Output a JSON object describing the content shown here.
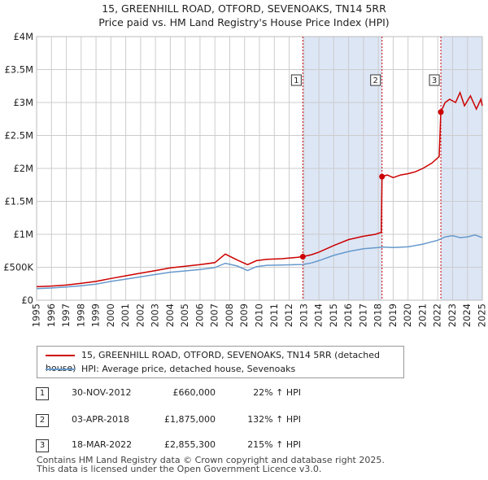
{
  "title_line1": "15, GREENHILL ROAD, OTFORD, SEVENOAKS, TN14 5RR",
  "title_line2": "Price paid vs. HM Land Registry's House Price Index (HPI)",
  "colors": {
    "property": "#cc0000",
    "hpi": "#6699cc",
    "band": "#dde6f5",
    "grid": "#cccccc"
  },
  "legend": {
    "property_label": "15, GREENHILL ROAD, OTFORD, SEVENOAKS, TN14 5RR (detached house)",
    "hpi_label": "HPI: Average price, detached house, Sevenoaks"
  },
  "transactions": [
    {
      "num": "1",
      "date": "30-NOV-2012",
      "price": "£660,000",
      "hpi_change": "22% ↑ HPI"
    },
    {
      "num": "2",
      "date": "03-APR-2018",
      "price": "£1,875,000",
      "hpi_change": "132% ↑ HPI"
    },
    {
      "num": "3",
      "date": "18-MAR-2022",
      "price": "£2,855,300",
      "hpi_change": "215% ↑ HPI"
    }
  ],
  "footer_line1": "Contains HM Land Registry data © Crown copyright and database right 2025.",
  "footer_line2": "This data is licensed under the Open Government Licence v3.0.",
  "chart_data": {
    "type": "line",
    "title": "15, GREENHILL ROAD, OTFORD, SEVENOAKS, TN14 5RR — Price paid vs. HM Land Registry's House Price Index (HPI)",
    "xlabel": "",
    "ylabel": "",
    "xlim": [
      1995,
      2025
    ],
    "ylim": [
      0,
      4000000
    ],
    "y_ticks": [
      0,
      500000,
      1000000,
      1500000,
      2000000,
      2500000,
      3000000,
      3500000,
      4000000
    ],
    "y_tick_labels": [
      "£0",
      "£500K",
      "£1M",
      "£1.5M",
      "£2M",
      "£2.5M",
      "£3M",
      "£3.5M",
      "£4M"
    ],
    "x_ticks": [
      1995,
      1996,
      1997,
      1998,
      1999,
      2000,
      2001,
      2002,
      2003,
      2004,
      2005,
      2006,
      2007,
      2008,
      2009,
      2010,
      2011,
      2012,
      2013,
      2014,
      2015,
      2016,
      2017,
      2018,
      2019,
      2020,
      2021,
      2022,
      2023,
      2024,
      2025
    ],
    "x_tick_labels": [
      "1995",
      "1996",
      "1997",
      "1998",
      "1999",
      "2000",
      "2001",
      "2002",
      "2003",
      "2004",
      "2005",
      "2006",
      "2007",
      "2008",
      "2009",
      "2010",
      "2011",
      "2012",
      "2013",
      "2014",
      "2015",
      "2016",
      "2017",
      "2018",
      "2019",
      "2020",
      "2021",
      "2022",
      "2023",
      "2024",
      "2025"
    ],
    "sale_markers": [
      {
        "label": "1",
        "x": 2012.92,
        "y": 660000
      },
      {
        "label": "2",
        "x": 2018.25,
        "y": 1875000
      },
      {
        "label": "3",
        "x": 2022.21,
        "y": 2855300
      }
    ],
    "shaded_spans": [
      [
        2012.92,
        2018.25
      ],
      [
        2022.21,
        2025
      ]
    ],
    "series": [
      {
        "name": "15, GREENHILL ROAD, OTFORD, SEVENOAKS, TN14 5RR (detached house)",
        "x": [
          1995,
          1996,
          1997,
          1998,
          1999,
          2000,
          2001,
          2002,
          2003,
          2004,
          2005,
          2006,
          2007,
          2007.7,
          2008.5,
          2009.2,
          2009.8,
          2010.5,
          2011.5,
          2012.5,
          2012.92,
          2013.5,
          2014,
          2015,
          2016,
          2017,
          2017.8,
          2018.2,
          2018.25,
          2018.6,
          2019,
          2019.5,
          2020,
          2020.5,
          2021,
          2021.6,
          2022.1,
          2022.21,
          2022.5,
          2022.8,
          2023.2,
          2023.5,
          2023.8,
          2024.2,
          2024.6,
          2024.9,
          2025
        ],
        "values": [
          205000,
          215000,
          230000,
          255000,
          285000,
          330000,
          370000,
          410000,
          450000,
          490000,
          515000,
          540000,
          570000,
          700000,
          610000,
          540000,
          600000,
          620000,
          630000,
          650000,
          660000,
          690000,
          730000,
          830000,
          920000,
          970000,
          1000000,
          1030000,
          1875000,
          1900000,
          1860000,
          1900000,
          1920000,
          1950000,
          2000000,
          2080000,
          2180000,
          2855300,
          3000000,
          3050000,
          3000000,
          3150000,
          2950000,
          3100000,
          2900000,
          3050000,
          2950000
        ]
      },
      {
        "name": "HPI: Average price, detached house, Sevenoaks",
        "x": [
          1995,
          1996,
          1997,
          1998,
          1999,
          2000,
          2001,
          2002,
          2003,
          2004,
          2005,
          2006,
          2007,
          2007.7,
          2008.5,
          2009.2,
          2009.8,
          2010.5,
          2011.5,
          2012.5,
          2012.92,
          2013.5,
          2014,
          2015,
          2016,
          2017,
          2018,
          2018.25,
          2019,
          2020,
          2021,
          2021.5,
          2022,
          2022.5,
          2023,
          2023.5,
          2024,
          2024.5,
          2025
        ],
        "values": [
          175000,
          185000,
          200000,
          220000,
          245000,
          285000,
          320000,
          355000,
          390000,
          425000,
          445000,
          465000,
          495000,
          560000,
          520000,
          450000,
          510000,
          530000,
          535000,
          540000,
          542000,
          565000,
          600000,
          680000,
          740000,
          780000,
          800000,
          808000,
          800000,
          810000,
          850000,
          880000,
          910000,
          960000,
          980000,
          950000,
          960000,
          990000,
          950000
        ]
      }
    ]
  }
}
